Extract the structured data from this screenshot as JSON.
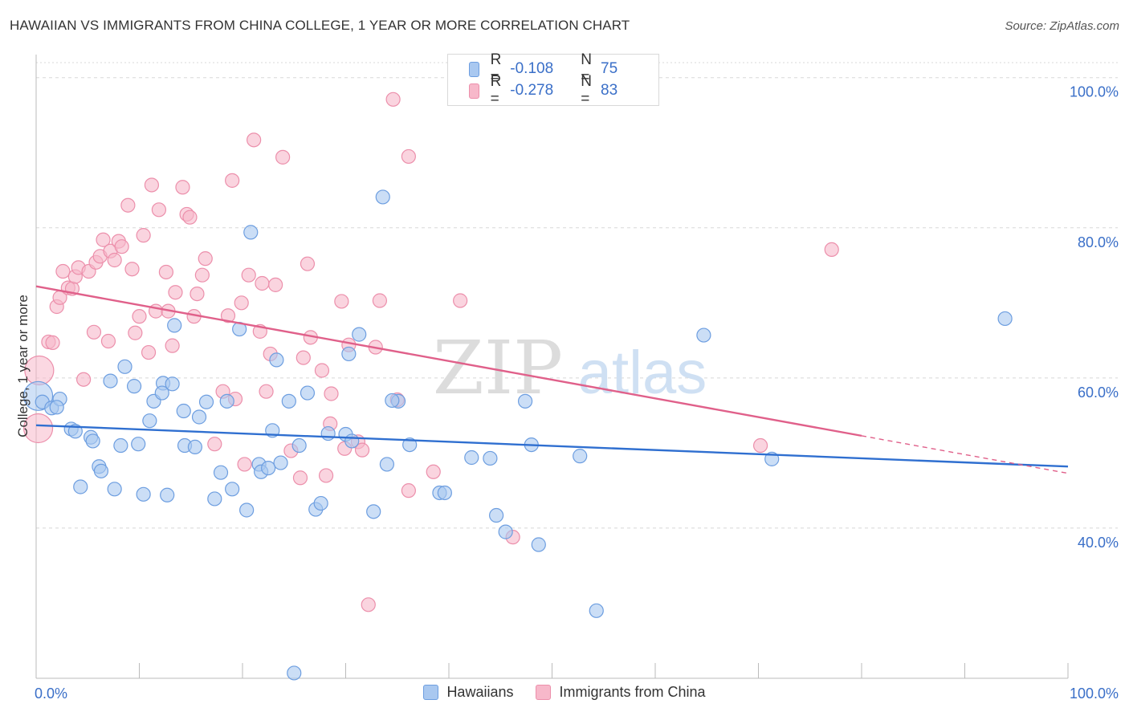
{
  "title": "HAWAIIAN VS IMMIGRANTS FROM CHINA COLLEGE, 1 YEAR OR MORE CORRELATION CHART",
  "source": "Source: ZipAtlas.com",
  "watermark": {
    "zip": "ZIP",
    "atlas": "atlas"
  },
  "colors": {
    "blue_fill": "#a9c8f0",
    "blue_stroke": "#6d9ee0",
    "blue_line": "#2f6fd0",
    "pink_fill": "#f7b8ca",
    "pink_stroke": "#ec8fab",
    "pink_line": "#e0608a",
    "axis_label": "#3a6fc8",
    "grid": "#d8d8d8"
  },
  "legend_top": [
    {
      "r_label": "R =",
      "r_value": "-0.108",
      "n_label": "N =",
      "n_value": "75",
      "color": "#a9c8f0",
      "border": "#6d9ee0"
    },
    {
      "r_label": "R =",
      "r_value": "-0.278",
      "n_label": "N =",
      "n_value": "83",
      "color": "#f7b8ca",
      "border": "#ec8fab"
    }
  ],
  "legend_bottom": [
    {
      "label": "Hawaiians",
      "color": "#a9c8f0",
      "border": "#6d9ee0"
    },
    {
      "label": "Immigrants from China",
      "color": "#f7b8ca",
      "border": "#ec8fab"
    }
  ],
  "chart_data": {
    "type": "scatter",
    "title": "HAWAIIAN VS IMMIGRANTS FROM CHINA COLLEGE, 1 YEAR OR MORE CORRELATION CHART",
    "xlabel": "",
    "ylabel": "College, 1 year or more",
    "xlim": [
      0,
      100
    ],
    "ylim": [
      20,
      102
    ],
    "x_tick_labels": [
      "0.0%",
      "100.0%"
    ],
    "y_tick_values": [
      40,
      60,
      80,
      100
    ],
    "y_tick_labels": [
      "40.0%",
      "60.0%",
      "80.0%",
      "100.0%"
    ],
    "grid": true,
    "legend": "top-center",
    "series": [
      {
        "name": "Hawaiians",
        "R": -0.108,
        "N": 75,
        "trend": {
          "x": [
            0,
            100
          ],
          "y": [
            53.7,
            48.2
          ]
        },
        "points": [
          {
            "x": 0.2,
            "y": 57.6,
            "big": true
          },
          {
            "x": 0.6,
            "y": 56.8
          },
          {
            "x": 1.5,
            "y": 56.0
          },
          {
            "x": 2.3,
            "y": 57.2
          },
          {
            "x": 2.0,
            "y": 56.1
          },
          {
            "x": 3.4,
            "y": 53.2
          },
          {
            "x": 3.8,
            "y": 52.9
          },
          {
            "x": 5.3,
            "y": 52.1
          },
          {
            "x": 5.5,
            "y": 51.6
          },
          {
            "x": 6.1,
            "y": 48.2
          },
          {
            "x": 6.3,
            "y": 47.6
          },
          {
            "x": 4.3,
            "y": 45.5
          },
          {
            "x": 7.6,
            "y": 45.2
          },
          {
            "x": 8.2,
            "y": 51.0
          },
          {
            "x": 9.9,
            "y": 51.2
          },
          {
            "x": 10.4,
            "y": 44.5
          },
          {
            "x": 12.7,
            "y": 44.4
          },
          {
            "x": 14.4,
            "y": 51.0
          },
          {
            "x": 15.4,
            "y": 50.8
          },
          {
            "x": 7.2,
            "y": 59.6
          },
          {
            "x": 8.6,
            "y": 61.5
          },
          {
            "x": 9.5,
            "y": 58.9
          },
          {
            "x": 11.0,
            "y": 54.3
          },
          {
            "x": 11.4,
            "y": 56.9
          },
          {
            "x": 12.3,
            "y": 59.3
          },
          {
            "x": 12.2,
            "y": 58.0
          },
          {
            "x": 13.2,
            "y": 59.2
          },
          {
            "x": 14.3,
            "y": 55.6
          },
          {
            "x": 15.8,
            "y": 54.8
          },
          {
            "x": 16.5,
            "y": 56.8
          },
          {
            "x": 17.3,
            "y": 43.9
          },
          {
            "x": 17.9,
            "y": 47.4
          },
          {
            "x": 18.5,
            "y": 56.9
          },
          {
            "x": 19.0,
            "y": 45.2
          },
          {
            "x": 19.7,
            "y": 66.5
          },
          {
            "x": 20.4,
            "y": 42.4
          },
          {
            "x": 21.6,
            "y": 48.5
          },
          {
            "x": 21.8,
            "y": 47.5
          },
          {
            "x": 22.5,
            "y": 48.0
          },
          {
            "x": 22.9,
            "y": 53.0
          },
          {
            "x": 23.7,
            "y": 48.7
          },
          {
            "x": 24.5,
            "y": 56.9
          },
          {
            "x": 25.5,
            "y": 51.0
          },
          {
            "x": 26.3,
            "y": 58.0
          },
          {
            "x": 27.1,
            "y": 42.5
          },
          {
            "x": 27.6,
            "y": 43.3
          },
          {
            "x": 28.3,
            "y": 52.6
          },
          {
            "x": 30.0,
            "y": 52.5
          },
          {
            "x": 30.6,
            "y": 51.6
          },
          {
            "x": 31.3,
            "y": 65.8
          },
          {
            "x": 32.7,
            "y": 42.2
          },
          {
            "x": 35.1,
            "y": 56.9
          },
          {
            "x": 36.2,
            "y": 51.1
          },
          {
            "x": 39.1,
            "y": 44.7
          },
          {
            "x": 39.6,
            "y": 44.7
          },
          {
            "x": 42.2,
            "y": 49.4
          },
          {
            "x": 44.0,
            "y": 49.3
          },
          {
            "x": 44.6,
            "y": 41.7
          },
          {
            "x": 45.5,
            "y": 39.5
          },
          {
            "x": 48.0,
            "y": 51.1
          },
          {
            "x": 48.7,
            "y": 37.8
          },
          {
            "x": 52.7,
            "y": 49.6
          },
          {
            "x": 54.3,
            "y": 29.0
          },
          {
            "x": 64.7,
            "y": 65.7
          },
          {
            "x": 71.3,
            "y": 49.2
          },
          {
            "x": 93.9,
            "y": 67.9
          },
          {
            "x": 33.6,
            "y": 84.1
          },
          {
            "x": 20.8,
            "y": 79.4
          },
          {
            "x": 13.4,
            "y": 67.0
          },
          {
            "x": 23.3,
            "y": 62.4
          },
          {
            "x": 34.5,
            "y": 57.0
          },
          {
            "x": 30.3,
            "y": 63.2
          },
          {
            "x": 47.4,
            "y": 56.9
          },
          {
            "x": 25.0,
            "y": 20.7
          },
          {
            "x": 34.0,
            "y": 48.5
          }
        ]
      },
      {
        "name": "Immigrants from China",
        "R": -0.278,
        "N": 83,
        "trend": {
          "x": [
            0,
            80
          ],
          "y": [
            72.2,
            52.3
          ]
        },
        "trend_dashed": {
          "x": [
            80,
            100
          ],
          "y": [
            52.3,
            47.3
          ]
        },
        "points": [
          {
            "x": 0.3,
            "y": 61.0,
            "big": true
          },
          {
            "x": 0.2,
            "y": 53.3,
            "big": true
          },
          {
            "x": 1.2,
            "y": 64.8
          },
          {
            "x": 1.6,
            "y": 64.7
          },
          {
            "x": 2.0,
            "y": 69.5
          },
          {
            "x": 2.3,
            "y": 70.7
          },
          {
            "x": 2.6,
            "y": 74.2
          },
          {
            "x": 3.1,
            "y": 72.0
          },
          {
            "x": 3.5,
            "y": 71.9
          },
          {
            "x": 3.8,
            "y": 73.5
          },
          {
            "x": 4.1,
            "y": 74.7
          },
          {
            "x": 4.6,
            "y": 59.8
          },
          {
            "x": 5.1,
            "y": 74.2
          },
          {
            "x": 5.8,
            "y": 75.4
          },
          {
            "x": 5.6,
            "y": 66.1
          },
          {
            "x": 6.2,
            "y": 76.2
          },
          {
            "x": 6.5,
            "y": 78.4
          },
          {
            "x": 7.0,
            "y": 64.9
          },
          {
            "x": 7.2,
            "y": 76.9
          },
          {
            "x": 7.6,
            "y": 75.7
          },
          {
            "x": 8.0,
            "y": 78.2
          },
          {
            "x": 8.3,
            "y": 77.5
          },
          {
            "x": 8.9,
            "y": 83.0
          },
          {
            "x": 9.3,
            "y": 74.5
          },
          {
            "x": 9.6,
            "y": 66.0
          },
          {
            "x": 10.0,
            "y": 68.2
          },
          {
            "x": 10.4,
            "y": 79.0
          },
          {
            "x": 10.9,
            "y": 63.4
          },
          {
            "x": 11.2,
            "y": 85.7
          },
          {
            "x": 11.6,
            "y": 68.9
          },
          {
            "x": 11.9,
            "y": 82.4
          },
          {
            "x": 12.6,
            "y": 74.1
          },
          {
            "x": 12.8,
            "y": 68.9
          },
          {
            "x": 13.2,
            "y": 64.3
          },
          {
            "x": 13.5,
            "y": 71.4
          },
          {
            "x": 14.2,
            "y": 85.4
          },
          {
            "x": 14.6,
            "y": 81.8
          },
          {
            "x": 14.9,
            "y": 81.4
          },
          {
            "x": 15.3,
            "y": 68.2
          },
          {
            "x": 15.6,
            "y": 71.2
          },
          {
            "x": 16.1,
            "y": 73.7
          },
          {
            "x": 16.4,
            "y": 75.9
          },
          {
            "x": 17.3,
            "y": 51.2
          },
          {
            "x": 18.1,
            "y": 58.2
          },
          {
            "x": 18.6,
            "y": 68.3
          },
          {
            "x": 19.0,
            "y": 86.3
          },
          {
            "x": 19.3,
            "y": 57.2
          },
          {
            "x": 19.9,
            "y": 70.0
          },
          {
            "x": 20.2,
            "y": 48.5
          },
          {
            "x": 20.6,
            "y": 73.7
          },
          {
            "x": 21.1,
            "y": 91.7
          },
          {
            "x": 21.7,
            "y": 66.2
          },
          {
            "x": 21.9,
            "y": 72.6
          },
          {
            "x": 22.3,
            "y": 58.2
          },
          {
            "x": 22.7,
            "y": 63.2
          },
          {
            "x": 23.2,
            "y": 72.4
          },
          {
            "x": 23.9,
            "y": 89.4
          },
          {
            "x": 24.7,
            "y": 50.3
          },
          {
            "x": 25.6,
            "y": 46.7
          },
          {
            "x": 25.9,
            "y": 62.7
          },
          {
            "x": 26.3,
            "y": 75.2
          },
          {
            "x": 26.6,
            "y": 65.4
          },
          {
            "x": 27.7,
            "y": 61.0
          },
          {
            "x": 28.1,
            "y": 47.0
          },
          {
            "x": 28.5,
            "y": 53.9
          },
          {
            "x": 28.6,
            "y": 57.9
          },
          {
            "x": 29.6,
            "y": 70.2
          },
          {
            "x": 30.3,
            "y": 64.4
          },
          {
            "x": 31.2,
            "y": 51.5
          },
          {
            "x": 31.6,
            "y": 50.4
          },
          {
            "x": 32.2,
            "y": 29.8
          },
          {
            "x": 32.9,
            "y": 64.1
          },
          {
            "x": 33.3,
            "y": 70.3
          },
          {
            "x": 35.0,
            "y": 57.1
          },
          {
            "x": 34.6,
            "y": 97.1
          },
          {
            "x": 36.1,
            "y": 89.5
          },
          {
            "x": 36.1,
            "y": 45.0
          },
          {
            "x": 38.5,
            "y": 47.5
          },
          {
            "x": 41.1,
            "y": 70.3
          },
          {
            "x": 46.2,
            "y": 38.8
          },
          {
            "x": 70.2,
            "y": 51.0
          },
          {
            "x": 77.1,
            "y": 77.1
          },
          {
            "x": 29.9,
            "y": 50.6
          }
        ]
      }
    ]
  }
}
